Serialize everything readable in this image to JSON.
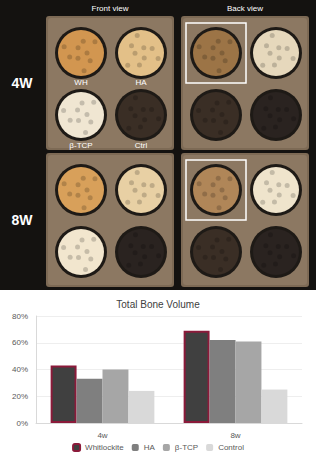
{
  "figure": {
    "columns": [
      "Front view",
      "Back view"
    ],
    "rows": [
      "4W",
      "8W"
    ],
    "labels": [
      "WH",
      "HA",
      "β-TCP",
      "Ctrl"
    ]
  },
  "chart_data": {
    "type": "bar",
    "title": "Total Bone Volume",
    "categories": [
      "4w",
      "8w"
    ],
    "series": [
      {
        "name": "Whitlockite",
        "color": "#404040",
        "values": [
          43,
          69
        ]
      },
      {
        "name": "HA",
        "color": "#7f7f7f",
        "values": [
          33,
          62
        ]
      },
      {
        "name": "β-TCP",
        "color": "#a6a6a6",
        "values": [
          40,
          61
        ]
      },
      {
        "name": "Control",
        "color": "#d9d9d9",
        "values": [
          24,
          25
        ]
      }
    ],
    "ylim": [
      0,
      80
    ],
    "yticks": [
      {
        "value": 0,
        "label": "0%"
      },
      {
        "value": 20,
        "label": "20%"
      },
      {
        "value": 40,
        "label": "40%"
      },
      {
        "value": 60,
        "label": "60%"
      },
      {
        "value": 80,
        "label": "80%"
      }
    ],
    "grid": true,
    "legend": "bottom"
  }
}
